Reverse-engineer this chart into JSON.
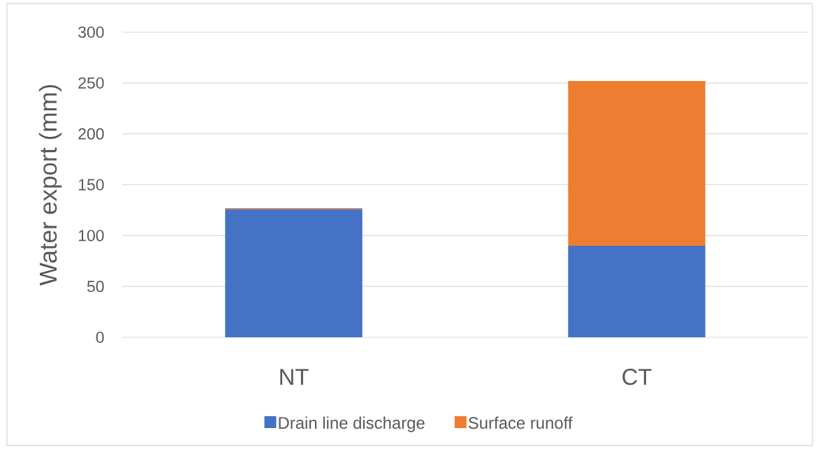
{
  "chart_data": {
    "type": "bar",
    "stacked": true,
    "categories": [
      "NT",
      "CT"
    ],
    "series": [
      {
        "name": "Drain line discharge",
        "color": "#4472c4",
        "values": [
          126,
          90
        ]
      },
      {
        "name": "Surface runoff",
        "color": "#ed7d31",
        "values": [
          1,
          162
        ]
      }
    ],
    "ylabel": "Water export (mm)",
    "ylim": [
      0,
      300
    ],
    "yticks": [
      0,
      50,
      100,
      150,
      200,
      250,
      300
    ],
    "grid": "y",
    "legend": "bottom"
  }
}
